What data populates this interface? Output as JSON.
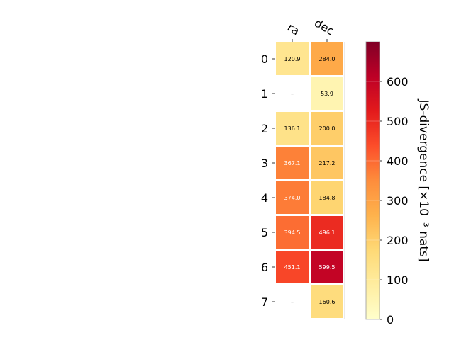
{
  "chart_data": {
    "type": "heatmap",
    "columns": [
      "ra",
      "dec"
    ],
    "rows": [
      "0",
      "1",
      "2",
      "3",
      "4",
      "5",
      "6",
      "7"
    ],
    "values": [
      [
        120.9,
        284.0
      ],
      [
        null,
        53.9
      ],
      [
        136.1,
        200.0
      ],
      [
        367.1,
        217.2
      ],
      [
        374.0,
        184.8
      ],
      [
        394.5,
        496.1
      ],
      [
        451.1,
        599.5
      ],
      [
        null,
        160.6
      ]
    ],
    "cell_labels": [
      [
        "120.9",
        "284.0"
      ],
      [
        "–",
        "53.9"
      ],
      [
        "136.1",
        "200.0"
      ],
      [
        "367.1",
        "217.2"
      ],
      [
        "374.0",
        "184.8"
      ],
      [
        "394.5",
        "496.1"
      ],
      [
        "451.1",
        "599.5"
      ],
      [
        "–",
        "160.6"
      ]
    ],
    "colorbar": {
      "label": "JS-divergence [×10⁻³ nats]",
      "range": [
        0,
        700
      ],
      "ticks": [
        "0",
        "100",
        "200",
        "300",
        "400",
        "500",
        "600"
      ],
      "colormap": "YlOrRd"
    },
    "grid": false,
    "legend": "none"
  }
}
